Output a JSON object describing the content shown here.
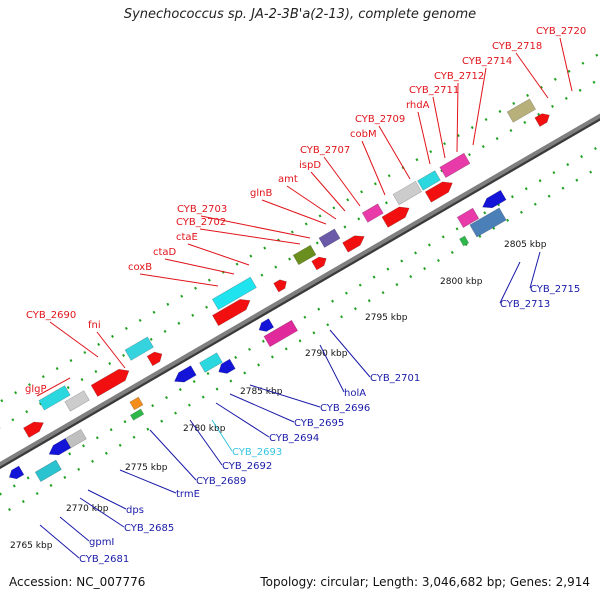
{
  "title": "Synechococcus sp. JA-2-3B'a(2-13), complete genome",
  "footer": {
    "accession": "Accession: NC_007776",
    "info": "Topology: circular; Length: 3,046,682 bp; Genes: 2,914"
  },
  "colors": {
    "forward_label": "#e0141b",
    "reverse_label": "#1a1aa8",
    "highlight_label": "#35c5e0",
    "backbone": "#7f7f7f",
    "forward_gene": "#f20f0f",
    "reverse_gene": "#1414d9",
    "rna": "#2fb5d0",
    "dots": "#21a121"
  },
  "scale_ticks": [
    "2765 kbp",
    "2770 kbp",
    "2775 kbp",
    "2780 kbp",
    "2785 kbp",
    "2790 kbp",
    "2795 kbp",
    "2800 kbp",
    "2805 kbp"
  ],
  "forward_labels": [
    "glgP",
    "CYB_2690",
    "fni",
    "coxB",
    "ctaD",
    "ctaE",
    "CYB_2702",
    "CYB_2703",
    "glnB",
    "amt",
    "ispD",
    "CYB_2707",
    "cobM",
    "CYB_2709",
    "rhdA",
    "CYB_2711",
    "CYB_2712",
    "CYB_2714",
    "CYB_2718",
    "CYB_2720"
  ],
  "reverse_labels": [
    "CYB_2681",
    "gpmI",
    "CYB_2685",
    "dps",
    "trmE",
    "CYB_2689",
    "CYB_2692",
    "CYB_2693",
    "CYB_2694",
    "CYB_2695",
    "CYB_2696",
    "holA",
    "CYB_2701",
    "CYB_2713",
    "CYB_2715"
  ]
}
